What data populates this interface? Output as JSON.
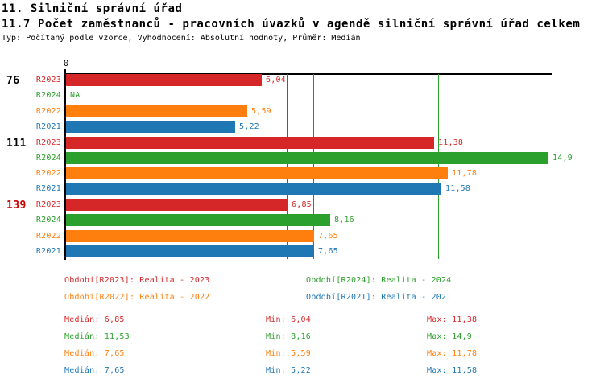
{
  "header": {
    "title": "11. Silniční správní úřad",
    "subtitle": "11.7 Počet zaměstnanců - pracovních úvazků v agendě silniční správní úřad celkem",
    "meta": "Typ: Počítaný podle vzorce, Vyhodnocení: Absolutní hodnoty, Průměr: Medián"
  },
  "colors": {
    "r2023": "#d62728",
    "r2024": "#2ca02c",
    "r2022": "#ff7f0e",
    "r2021": "#1f77b4",
    "axis": "#000000",
    "group_label_highlight": "#cc0000"
  },
  "chart_data": {
    "type": "bar",
    "orientation": "horizontal",
    "title": "11.7 Počet zaměstnanců - pracovních úvazků v agendě silniční správní úřad celkem",
    "xlabel": "",
    "ylabel": "",
    "xlim": [
      0,
      15.05
    ],
    "grid": false,
    "legend_position": "bottom",
    "x_axis": {
      "zero_label": "0"
    },
    "series_order": [
      "R2023",
      "R2024",
      "R2022",
      "R2021"
    ],
    "series_colors": {
      "R2023": "#d62728",
      "R2024": "#2ca02c",
      "R2022": "#ff7f0e",
      "R2021": "#1f77b4"
    },
    "na_text": "NA",
    "groups": [
      {
        "label": "76",
        "label_color": "#000000",
        "rows": [
          {
            "series": "R2023",
            "value": 6.04,
            "display": "6,04"
          },
          {
            "series": "R2024",
            "value": null,
            "display": "NA"
          },
          {
            "series": "R2022",
            "value": 5.59,
            "display": "5,59"
          },
          {
            "series": "R2021",
            "value": 5.22,
            "display": "5,22"
          }
        ]
      },
      {
        "label": "111",
        "label_color": "#000000",
        "rows": [
          {
            "series": "R2023",
            "value": 11.38,
            "display": "11,38"
          },
          {
            "series": "R2024",
            "value": 14.9,
            "display": "14,9"
          },
          {
            "series": "R2022",
            "value": 11.78,
            "display": "11,78"
          },
          {
            "series": "R2021",
            "value": 11.58,
            "display": "11,58"
          }
        ]
      },
      {
        "label": "139",
        "label_color": "#cc0000",
        "rows": [
          {
            "series": "R2023",
            "value": 6.85,
            "display": "6,85"
          },
          {
            "series": "R2024",
            "value": 8.16,
            "display": "8,16"
          },
          {
            "series": "R2022",
            "value": 7.65,
            "display": "7,65"
          },
          {
            "series": "R2021",
            "value": 7.65,
            "display": "7,65"
          }
        ]
      }
    ],
    "reference_lines": [
      {
        "series": "R2023",
        "value": 6.85,
        "color": "#d62728"
      },
      {
        "series": "R2022",
        "value": 7.65,
        "color": "#ff7f0e"
      },
      {
        "series": "R2021",
        "value": 7.65,
        "color": "#1f77b4"
      },
      {
        "series": "R2024",
        "value": 11.53,
        "color": "#2ca02c"
      }
    ]
  },
  "legend": {
    "items": [
      {
        "label": "Období[R2023]: Realita - 2023",
        "color": "#d62728"
      },
      {
        "label": "Období[R2024]: Realita - 2024",
        "color": "#2ca02c"
      },
      {
        "label": "Období[R2022]: Realita - 2022",
        "color": "#ff7f0e"
      },
      {
        "label": "Období[R2021]: Realita - 2021",
        "color": "#1f77b4"
      }
    ]
  },
  "stats": {
    "rows": [
      {
        "color": "#d62728",
        "median": 6.85,
        "min": 6.04,
        "max": 11.38,
        "median_label": "Medián: 6,85",
        "min_label": "Min: 6,04",
        "max_label": "Max: 11,38"
      },
      {
        "color": "#2ca02c",
        "median": 11.53,
        "min": 8.16,
        "max": 14.9,
        "median_label": "Medián: 11,53",
        "min_label": "Min: 8,16",
        "max_label": "Max: 14,9"
      },
      {
        "color": "#ff7f0e",
        "median": 7.65,
        "min": 5.59,
        "max": 11.78,
        "median_label": "Medián: 7,65",
        "min_label": "Min: 5,59",
        "max_label": "Max: 11,78"
      },
      {
        "color": "#1f77b4",
        "median": 7.65,
        "min": 5.22,
        "max": 11.58,
        "median_label": "Medián: 7,65",
        "min_label": "Min: 5,22",
        "max_label": "Max: 11,58"
      }
    ]
  }
}
